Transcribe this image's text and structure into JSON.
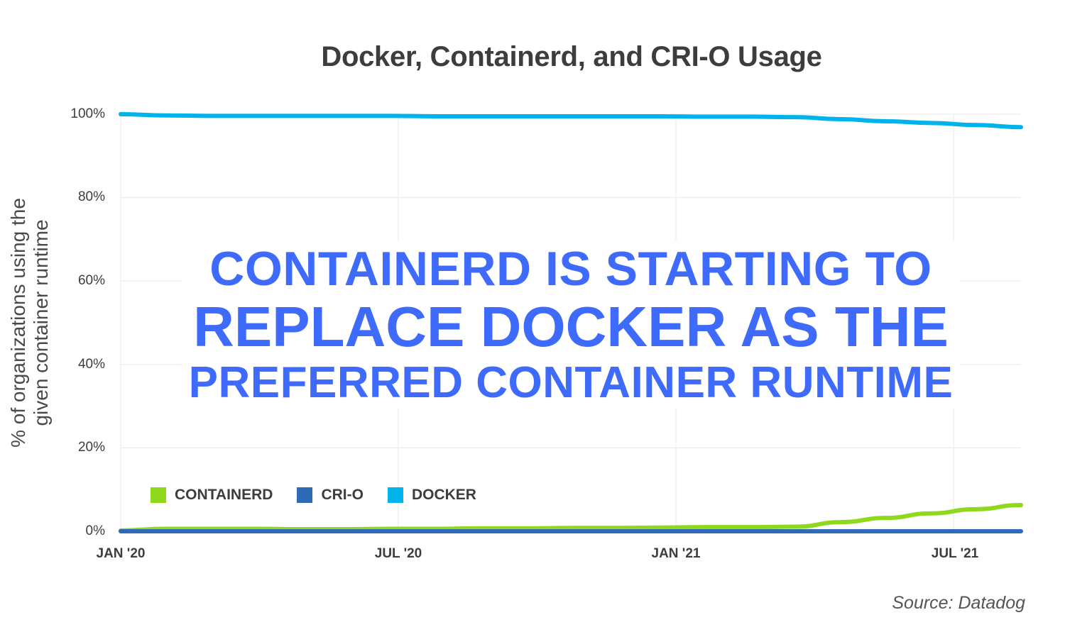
{
  "chart_data": {
    "type": "line",
    "title": "Docker, Containerd, and CRI-O Usage",
    "xlabel": "",
    "ylabel": "% of organizations using the given container runtime",
    "ylabel_lines": [
      "% of organizations using the",
      "given container runtime"
    ],
    "ylim": [
      0,
      100
    ],
    "yticks": [
      "0%",
      "20%",
      "40%",
      "60%",
      "80%",
      "100%"
    ],
    "xticks": [
      "JAN '20",
      "JUL '20",
      "JAN '21",
      "JUL '21"
    ],
    "grid": true,
    "legend_position": "bottom-left inside plot",
    "x": [
      "Jan 2020",
      "Feb 2020",
      "Mar 2020",
      "Apr 2020",
      "May 2020",
      "Jun 2020",
      "Jul 2020",
      "Aug 2020",
      "Sep 2020",
      "Oct 2020",
      "Nov 2020",
      "Dec 2020",
      "Jan 2021",
      "Feb 2021",
      "Mar 2021",
      "Apr 2021",
      "May 2021",
      "Jun 2021",
      "Jul 2021",
      "Aug 2021",
      "Sep 2021"
    ],
    "series": [
      {
        "name": "CONTAINERD",
        "color": "#8fd81c",
        "values": [
          0.2,
          0.6,
          0.6,
          0.6,
          0.5,
          0.5,
          0.6,
          0.6,
          0.7,
          0.7,
          0.8,
          0.8,
          0.9,
          1.0,
          1.0,
          1.1,
          2.2,
          3.2,
          4.3,
          5.3,
          6.3
        ]
      },
      {
        "name": "CRI-O",
        "color": "#2f6ab8",
        "values": [
          0,
          0,
          0,
          0,
          0,
          0,
          0,
          0,
          0,
          0,
          0,
          0,
          0,
          0,
          0,
          0,
          0,
          0,
          0,
          0,
          0
        ]
      },
      {
        "name": "DOCKER",
        "color": "#00b4eb",
        "values": [
          100,
          99.7,
          99.6,
          99.6,
          99.6,
          99.6,
          99.6,
          99.5,
          99.5,
          99.5,
          99.5,
          99.5,
          99.5,
          99.4,
          99.4,
          99.3,
          98.8,
          98.3,
          97.9,
          97.4,
          96.9
        ]
      }
    ],
    "annotations": [
      "CONTAINERD IS STARTING TO",
      "REPLACE DOCKER AS THE",
      "PREFERRED CONTAINER RUNTIME"
    ],
    "source": "Source: Datadog"
  },
  "header": {
    "title": "Docker, Containerd, and CRI-O Usage"
  },
  "axis": {
    "y_label_line1": "% of organizations using the",
    "y_label_line2": "given container runtime",
    "y_ticks": [
      "100%",
      "80%",
      "60%",
      "40%",
      "20%",
      "0%"
    ],
    "x_ticks": [
      "JAN '20",
      "JUL '20",
      "JAN '21",
      "JUL '21"
    ]
  },
  "legend": {
    "items": [
      {
        "label": "CONTAINERD",
        "color": "#8fd81c"
      },
      {
        "label": "CRI-O",
        "color": "#2f6ab8"
      },
      {
        "label": "DOCKER",
        "color": "#00b4eb"
      }
    ]
  },
  "overlay": {
    "line1": "CONTAINERD IS STARTING TO",
    "line2": "REPLACE DOCKER AS THE",
    "line3": "PREFERRED CONTAINER RUNTIME",
    "color": "#3f6bfd"
  },
  "footer": {
    "source": "Source: Datadog"
  }
}
